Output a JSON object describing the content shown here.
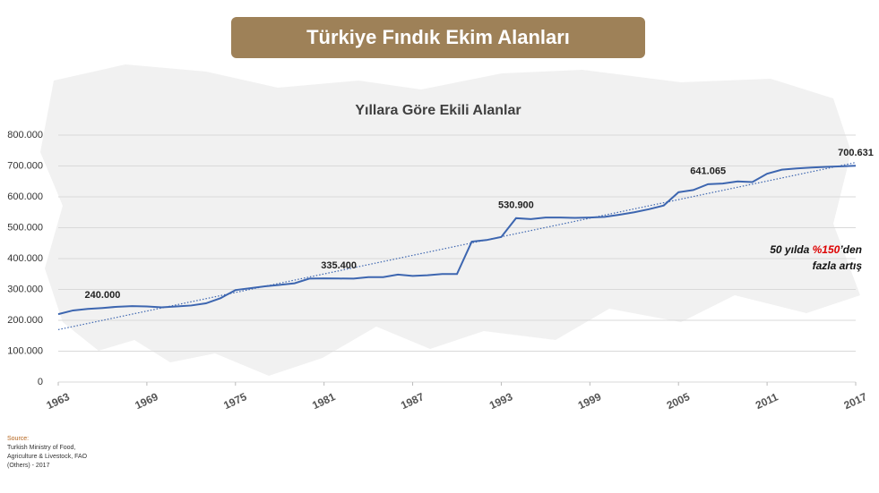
{
  "banner": "Türkiye Fındık Ekim Alanları",
  "source": {
    "heading": "Source:",
    "lines": [
      "Turkish Ministry of Food,",
      "Agriculture & Livestock, FAO",
      "(Others) - 2017"
    ]
  },
  "chart_data": {
    "type": "line",
    "title": "Yıllara Göre Ekili Alanlar",
    "x": [
      1963,
      1964,
      1965,
      1966,
      1967,
      1968,
      1969,
      1970,
      1971,
      1972,
      1973,
      1974,
      1975,
      1976,
      1977,
      1978,
      1979,
      1980,
      1981,
      1982,
      1983,
      1984,
      1985,
      1986,
      1987,
      1988,
      1989,
      1990,
      1991,
      1992,
      1993,
      1994,
      1995,
      1996,
      1997,
      1998,
      1999,
      2000,
      2001,
      2002,
      2003,
      2004,
      2005,
      2006,
      2007,
      2008,
      2009,
      2010,
      2011,
      2012,
      2013,
      2014,
      2015,
      2016,
      2017
    ],
    "series": [
      {
        "name": "Ekili Alan",
        "color": "#3d66b0",
        "values": [
          220000,
          232000,
          237000,
          240000,
          244000,
          246000,
          245000,
          242000,
          245000,
          248000,
          255000,
          272000,
          298000,
          304000,
          310000,
          315000,
          320000,
          335000,
          336000,
          335400,
          335000,
          340000,
          340000,
          348000,
          344000,
          346000,
          350000,
          350000,
          455000,
          460000,
          470000,
          530900,
          528000,
          533000,
          533000,
          532000,
          533000,
          535000,
          542000,
          550000,
          560000,
          572000,
          615000,
          622000,
          641065,
          643000,
          650000,
          648000,
          675000,
          688000,
          692000,
          695000,
          697000,
          699000,
          700631
        ],
        "value_labels": [
          null,
          null,
          null,
          "240.000",
          null,
          null,
          null,
          null,
          null,
          null,
          null,
          null,
          null,
          null,
          null,
          null,
          null,
          null,
          null,
          "335.400",
          null,
          null,
          null,
          null,
          null,
          null,
          null,
          null,
          null,
          null,
          null,
          "530.900",
          null,
          null,
          null,
          null,
          null,
          null,
          null,
          null,
          null,
          null,
          null,
          null,
          "641.065",
          null,
          null,
          null,
          null,
          null,
          null,
          null,
          null,
          null,
          "700.631"
        ]
      }
    ],
    "trendline": true,
    "xlim": [
      1963,
      2017
    ],
    "xticks": [
      1963,
      1969,
      1975,
      1981,
      1987,
      1993,
      1999,
      2005,
      2011,
      2017
    ],
    "ylim": [
      0,
      800000
    ],
    "yticks": [
      0,
      {
        "value": 100000,
        "label": "100.000"
      },
      {
        "value": 200000,
        "label": "200.000"
      },
      {
        "value": 300000,
        "label": "300.000"
      },
      {
        "value": 400000,
        "label": "400.000"
      },
      {
        "value": 500000,
        "label": "500.000"
      },
      {
        "value": 600000,
        "label": "600.000"
      },
      {
        "value": 700000,
        "label": "700.000"
      },
      {
        "value": 800000,
        "label": "800.000"
      }
    ],
    "grid": true,
    "annotation": {
      "before": "50 yılda",
      "highlight": "%150",
      "after": "’den",
      "line2": "fazla artış"
    }
  }
}
